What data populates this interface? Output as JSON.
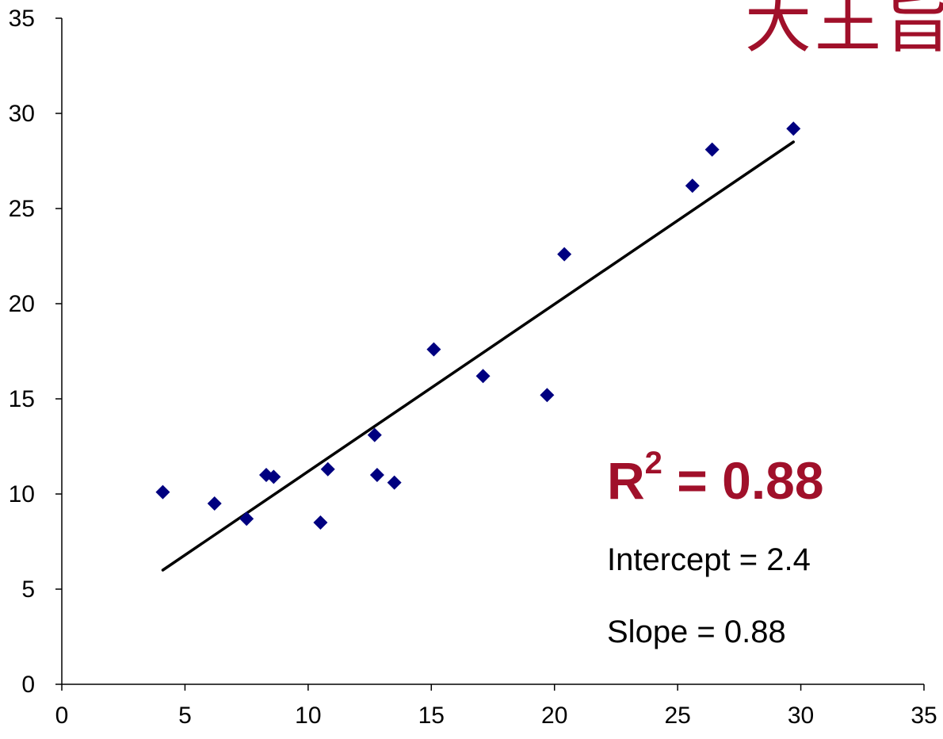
{
  "title_fragment": "大王旨",
  "chart_data": {
    "type": "scatter",
    "title": "",
    "xlabel": "",
    "ylabel": "",
    "xlim": [
      0,
      35
    ],
    "ylim": [
      0,
      35
    ],
    "x_ticks": [
      0,
      5,
      10,
      15,
      20,
      25,
      30,
      35
    ],
    "y_ticks": [
      0,
      5,
      10,
      15,
      20,
      25,
      30,
      35
    ],
    "grid": false,
    "marker_color": "#000080",
    "line_color": "#000000",
    "series": [
      {
        "points": [
          {
            "x": 4.1,
            "y": 10.1
          },
          {
            "x": 6.2,
            "y": 9.5
          },
          {
            "x": 7.5,
            "y": 8.7
          },
          {
            "x": 8.3,
            "y": 11.0
          },
          {
            "x": 8.6,
            "y": 10.9
          },
          {
            "x": 10.5,
            "y": 8.5
          },
          {
            "x": 10.8,
            "y": 11.3
          },
          {
            "x": 12.7,
            "y": 13.1
          },
          {
            "x": 12.8,
            "y": 11.0
          },
          {
            "x": 13.5,
            "y": 10.6
          },
          {
            "x": 15.1,
            "y": 17.6
          },
          {
            "x": 17.1,
            "y": 16.2
          },
          {
            "x": 19.7,
            "y": 15.2
          },
          {
            "x": 20.4,
            "y": 22.6
          },
          {
            "x": 25.6,
            "y": 26.2
          },
          {
            "x": 26.4,
            "y": 28.1
          },
          {
            "x": 29.7,
            "y": 29.2
          }
        ]
      }
    ],
    "trendline": {
      "points": [
        {
          "x": 4.1,
          "y": 6.0
        },
        {
          "x": 29.7,
          "y": 28.5
        }
      ]
    },
    "annotations": {
      "r2_prefix": "R",
      "r2_exp": "2",
      "r2_suffix": " = 0.88",
      "intercept": "Intercept = 2.4",
      "slope": "Slope = 0.88"
    }
  }
}
